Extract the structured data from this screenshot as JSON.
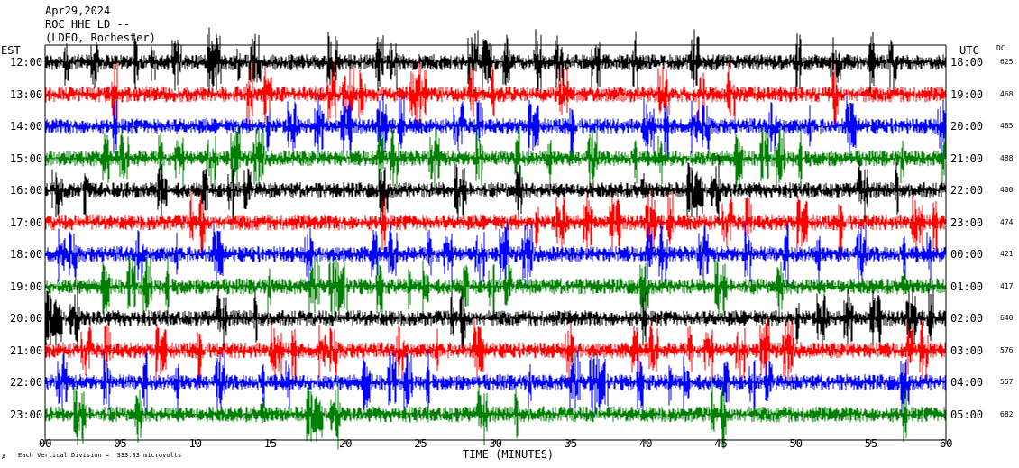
{
  "header": {
    "date": "Apr29,2024",
    "station": "ROC HHE LD --",
    "location": "(LDEO, Rochester)"
  },
  "labels": {
    "left_zone": "EST",
    "right_zone": "UTC",
    "dc": "DC",
    "xlabel": "TIME (MINUTES)",
    "scale_note": "Each Vertical Division =  333.33 microvolts",
    "corner_mark": "A"
  },
  "chart_data": {
    "type": "line",
    "xlim": [
      0,
      60
    ],
    "x_ticks": [
      "00",
      "05",
      "10",
      "15",
      "20",
      "25",
      "30",
      "35",
      "40",
      "45",
      "50",
      "55",
      "60"
    ],
    "colors": [
      "#000000",
      "#ff0000",
      "#0000ff",
      "#008000"
    ],
    "grid": false,
    "rows": [
      {
        "est": "12:00",
        "utc": "18:00",
        "dc": "625"
      },
      {
        "est": "13:00",
        "utc": "19:00",
        "dc": "468"
      },
      {
        "est": "14:00",
        "utc": "20:00",
        "dc": "485"
      },
      {
        "est": "15:00",
        "utc": "21:00",
        "dc": "488"
      },
      {
        "est": "16:00",
        "utc": "22:00",
        "dc": "400"
      },
      {
        "est": "17:00",
        "utc": "23:00",
        "dc": "474"
      },
      {
        "est": "18:00",
        "utc": "00:00",
        "dc": "421"
      },
      {
        "est": "19:00",
        "utc": "01:00",
        "dc": "417"
      },
      {
        "est": "20:00",
        "utc": "02:00",
        "dc": "640"
      },
      {
        "est": "21:00",
        "utc": "03:00",
        "dc": "576"
      },
      {
        "est": "22:00",
        "utc": "04:00",
        "dc": "557"
      },
      {
        "est": "23:00",
        "utc": "05:00",
        "dc": "682"
      }
    ]
  }
}
